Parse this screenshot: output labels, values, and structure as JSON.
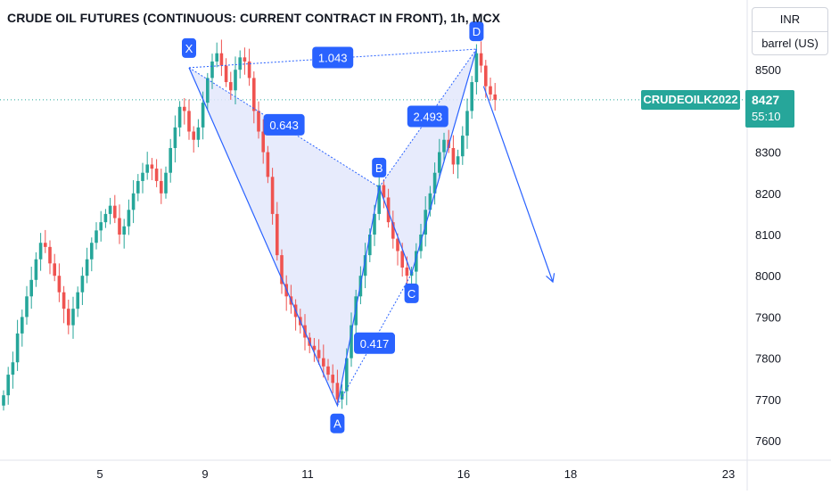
{
  "header": {
    "title": "CRUDE OIL FUTURES (CONTINUOUS: CURRENT CONTRACT IN FRONT), 1h, MCX"
  },
  "unit_selector": {
    "currency": "INR",
    "unit": "barrel (US)"
  },
  "price_marker": {
    "symbol": "CRUDEOILK2022",
    "price": "8427",
    "countdown": "55:10"
  },
  "colors": {
    "up": "#26a69a",
    "down": "#ef5350",
    "pattern_line": "#2962ff",
    "pattern_fill": "#e3e8fb",
    "label_bg": "#2962ff"
  },
  "chart_data": {
    "type": "candlestick",
    "title": "CRUDE OIL FUTURES (CONTINUOUS: CURRENT CONTRACT IN FRONT), 1h, MCX",
    "x_ticks": [
      "5",
      "9",
      "11",
      "16",
      "18",
      "23"
    ],
    "y_ticks": [
      7600,
      7700,
      7800,
      7900,
      8000,
      8100,
      8200,
      8300,
      8400,
      8500
    ],
    "ylim": [
      7565,
      8650
    ],
    "last_price": 8427,
    "candles_close": [
      7710,
      7760,
      7790,
      7860,
      7900,
      7950,
      7990,
      8040,
      8080,
      8070,
      8030,
      8000,
      7960,
      7920,
      7880,
      7920,
      7960,
      8000,
      8040,
      8080,
      8110,
      8130,
      8150,
      8170,
      8140,
      8100,
      8120,
      8160,
      8200,
      8230,
      8250,
      8270,
      8260,
      8230,
      8200,
      8250,
      8310,
      8360,
      8410,
      8400,
      8350,
      8330,
      8360,
      8420,
      8480,
      8520,
      8540,
      8510,
      8470,
      8450,
      8500,
      8530,
      8520,
      8480,
      8400,
      8350,
      8300,
      8240,
      8150,
      8050,
      7980,
      7950,
      7930,
      7900,
      7880,
      7850,
      7830,
      7820,
      7800,
      7780,
      7760,
      7740,
      7700,
      7720,
      7800,
      7880,
      7950,
      8000,
      8050,
      8100,
      8150,
      8220,
      8190,
      8130,
      8090,
      8060,
      8020,
      8000,
      8010,
      8060,
      8100,
      8160,
      8200,
      8250,
      8300,
      8330,
      8310,
      8270,
      8290,
      8340,
      8400,
      8470,
      8540,
      8510,
      8460,
      8440,
      8427
    ],
    "pattern": {
      "points": [
        {
          "label": "X",
          "index": 40,
          "price": 8505
        },
        {
          "label": "A",
          "index": 72,
          "price": 7685
        },
        {
          "label": "B",
          "index": 81,
          "price": 8215
        },
        {
          "label": "C",
          "index": 88,
          "price": 8005
        },
        {
          "label": "D",
          "index": 102,
          "price": 8550
        }
      ],
      "ratios": [
        "1.043",
        "0.643",
        "2.493",
        "0.417"
      ]
    },
    "projection": {
      "start": 8460,
      "end": 7985
    }
  }
}
